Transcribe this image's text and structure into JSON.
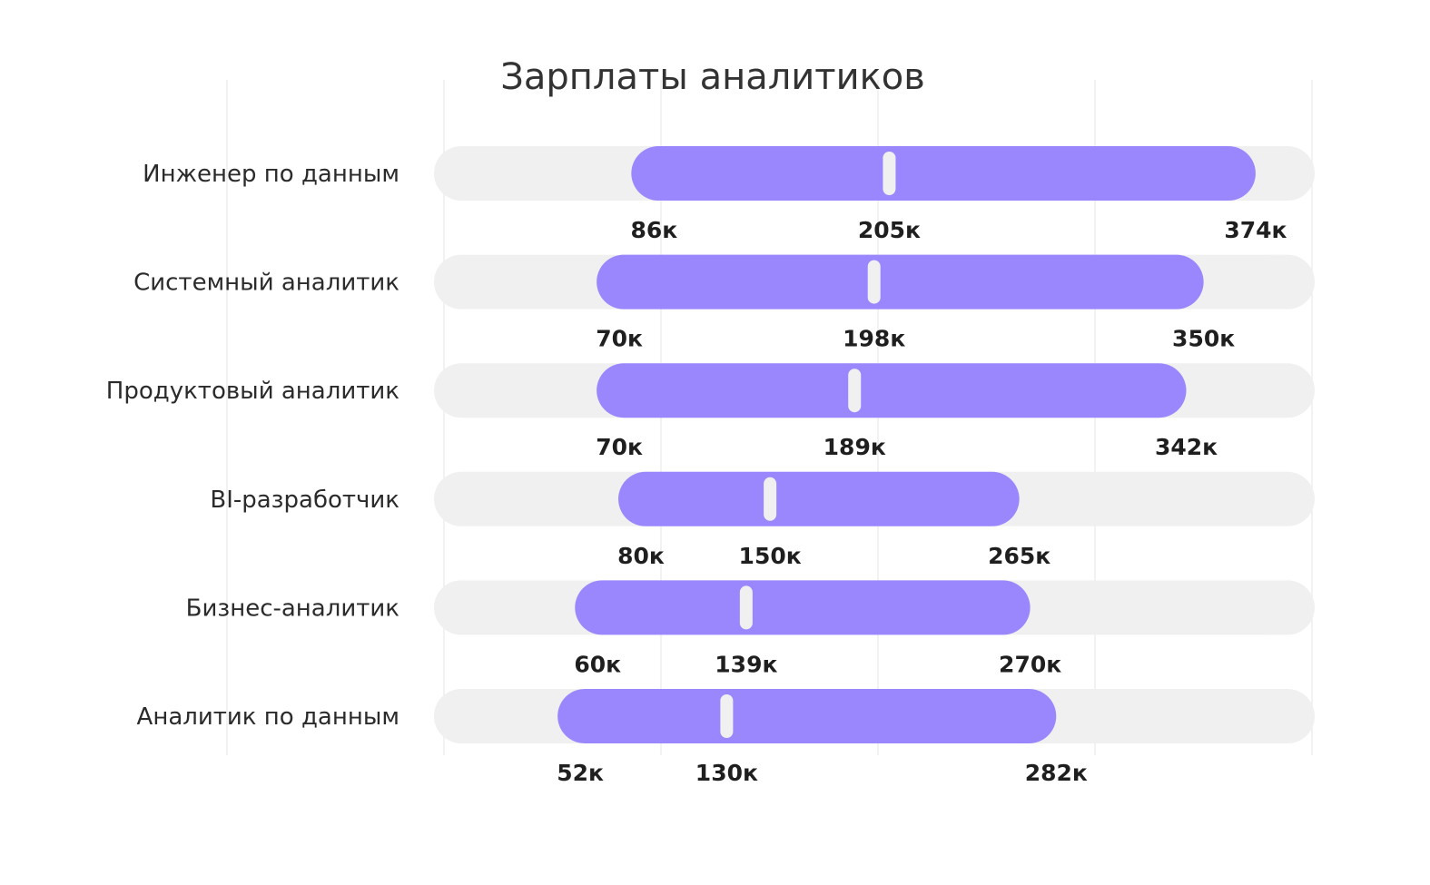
{
  "chart_data": {
    "type": "bar",
    "title": "Зарплаты аналитиков",
    "xlabel": "",
    "ylabel": "",
    "grid": true,
    "xlim": [
      0,
      400
    ],
    "unit_suffix": "к",
    "colors": {
      "range": "#9b87fd",
      "track": "#f0f0f0",
      "median_marker": "#f0f0f0",
      "grid": "#eeeeee"
    },
    "categories": [
      "Инженер по данным",
      "Системный аналитик",
      "Продуктовый аналитик",
      "BI-разработчик",
      "Бизнес-аналитик",
      "Аналитик по данным"
    ],
    "series": [
      {
        "values": [
          86,
          70,
          70,
          80,
          60,
          52
        ]
      },
      {
        "values": [
          205,
          198,
          189,
          150,
          139,
          130
        ]
      },
      {
        "values": [
          374,
          350,
          342,
          265,
          270,
          282
        ]
      }
    ],
    "labels": [
      {
        "min": "86к",
        "median": "205к",
        "max": "374к"
      },
      {
        "min": "70к",
        "median": "198к",
        "max": "350к"
      },
      {
        "min": "70к",
        "median": "189к",
        "max": "342к"
      },
      {
        "min": "80к",
        "median": "150к",
        "max": "265к"
      },
      {
        "min": "60к",
        "median": "139к",
        "max": "270к"
      },
      {
        "min": "52к",
        "median": "130к",
        "max": "282к"
      }
    ]
  }
}
